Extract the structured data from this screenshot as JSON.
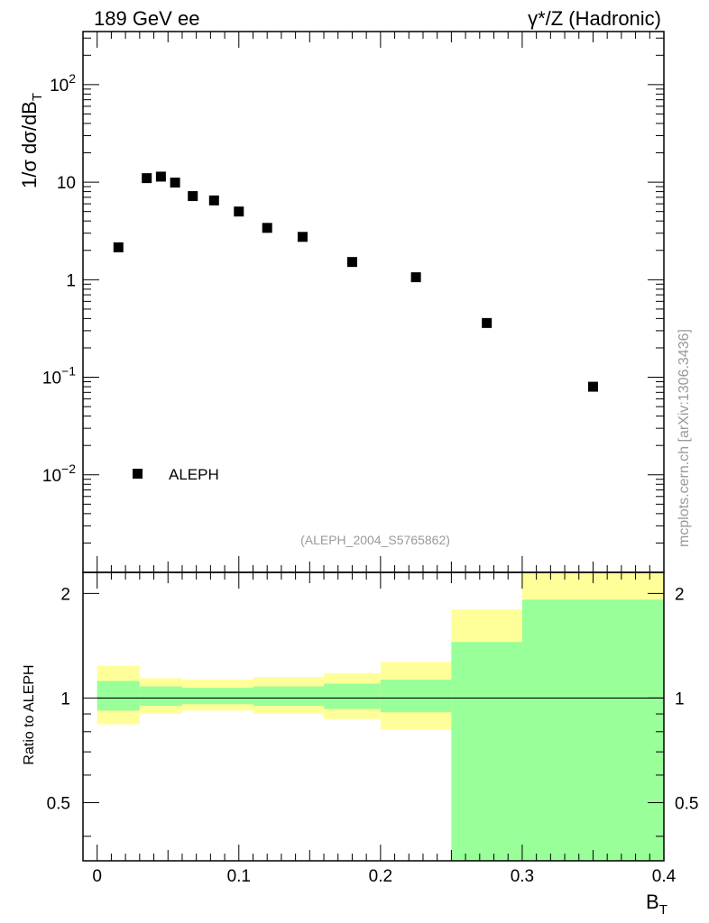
{
  "header": {
    "left": "189 GeV ee",
    "right": "γ*/Z (Hadronic)"
  },
  "watermark": "mcplots.cern.ch [arXiv:1306.3436]",
  "analysis_tag": "(ALEPH_2004_S5765862)",
  "colors": {
    "inner_band": "#99ff99",
    "outer_band": "#ffff99",
    "marker": "#000000"
  },
  "chart_data": [
    {
      "type": "scatter",
      "ylabel": "1/σ dσ/dB_T",
      "yscale": "log",
      "ylim": [
        0.001,
        350
      ],
      "xlim": [
        -0.01,
        0.4
      ],
      "yticks": [
        {
          "value": 100,
          "base": "10",
          "exp": "2"
        },
        {
          "value": 10,
          "base": "10",
          "exp": ""
        },
        {
          "value": 1,
          "base": "1",
          "exp": ""
        },
        {
          "value": 0.1,
          "base": "10",
          "exp": "−1"
        },
        {
          "value": 0.01,
          "base": "10",
          "exp": "−2"
        }
      ],
      "legend": {
        "label": "ALEPH",
        "position": "bottom-left"
      },
      "series": [
        {
          "name": "ALEPH",
          "x": [
            0.015,
            0.035,
            0.045,
            0.055,
            0.0675,
            0.0825,
            0.1,
            0.12,
            0.145,
            0.18,
            0.225,
            0.275,
            0.35
          ],
          "y": [
            2.15,
            11.0,
            11.4,
            9.9,
            7.2,
            6.5,
            5.0,
            3.4,
            2.75,
            1.52,
            1.06,
            0.36,
            0.08
          ]
        }
      ]
    },
    {
      "type": "area",
      "ylabel": "Ratio to ALEPH",
      "xlabel": "B_T",
      "xlim": [
        -0.01,
        0.4
      ],
      "ylim": [
        0.34,
        2.3
      ],
      "xticks": [
        "0",
        "0.1",
        "0.2",
        "0.3",
        "0.4"
      ],
      "yticks": [
        "0.5",
        "1",
        "2"
      ],
      "reference_line": 1,
      "bins": [
        {
          "lo": 0.0,
          "hi": 0.03,
          "inner": [
            0.92,
            1.12
          ],
          "outer": [
            0.84,
            1.24
          ]
        },
        {
          "lo": 0.03,
          "hi": 0.06,
          "inner": [
            0.95,
            1.08
          ],
          "outer": [
            0.9,
            1.14
          ]
        },
        {
          "lo": 0.06,
          "hi": 0.11,
          "inner": [
            0.96,
            1.07
          ],
          "outer": [
            0.92,
            1.13
          ]
        },
        {
          "lo": 0.11,
          "hi": 0.16,
          "inner": [
            0.95,
            1.08
          ],
          "outer": [
            0.9,
            1.15
          ]
        },
        {
          "lo": 0.16,
          "hi": 0.2,
          "inner": [
            0.93,
            1.1
          ],
          "outer": [
            0.87,
            1.18
          ]
        },
        {
          "lo": 0.2,
          "hi": 0.25,
          "inner": [
            0.91,
            1.13
          ],
          "outer": [
            0.81,
            1.27
          ]
        },
        {
          "lo": 0.25,
          "hi": 0.3,
          "inner": [
            0.34,
            1.45
          ],
          "outer": [
            0.34,
            1.8
          ]
        },
        {
          "lo": 0.3,
          "hi": 0.4,
          "inner": [
            0.34,
            1.92
          ],
          "outer": [
            0.34,
            2.3
          ]
        }
      ]
    }
  ]
}
